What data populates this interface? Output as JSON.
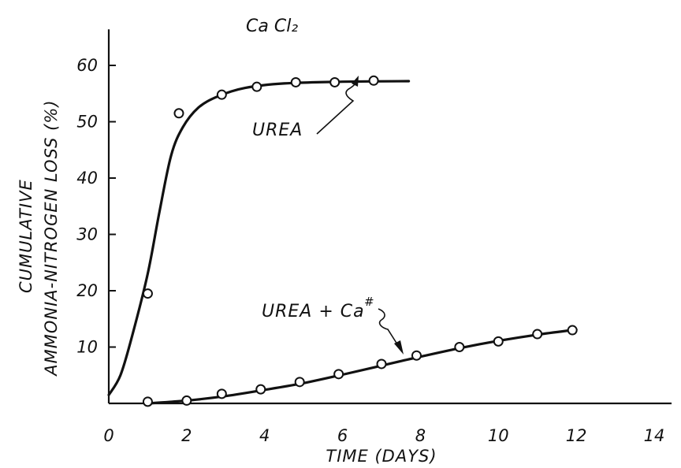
{
  "chart_data": {
    "type": "line",
    "title": "Ca Cl₂",
    "xlabel": "TIME (DAYS)",
    "ylabel_line1": "CUMULATIVE",
    "ylabel_line2": "AMMONIA-NITROGEN LOSS (%)",
    "xlim": [
      0,
      14
    ],
    "ylim": [
      0,
      65
    ],
    "x_ticks": [
      0,
      2,
      4,
      6,
      8,
      10,
      12,
      14
    ],
    "y_ticks": [
      10,
      20,
      30,
      40,
      50,
      60
    ],
    "grid": false,
    "series": [
      {
        "name": "UREA",
        "points": [
          {
            "x": 1.0,
            "y": 19.5
          },
          {
            "x": 1.8,
            "y": 51.5
          },
          {
            "x": 2.9,
            "y": 54.8
          },
          {
            "x": 3.8,
            "y": 56.2
          },
          {
            "x": 4.8,
            "y": 57.0
          },
          {
            "x": 5.8,
            "y": 57.0
          },
          {
            "x": 6.8,
            "y": 57.3
          }
        ],
        "curve": [
          {
            "x": 0.0,
            "y": 1.5
          },
          {
            "x": 0.3,
            "y": 5.0
          },
          {
            "x": 0.6,
            "y": 12.0
          },
          {
            "x": 1.0,
            "y": 23.0
          },
          {
            "x": 1.3,
            "y": 34.0
          },
          {
            "x": 1.6,
            "y": 44.0
          },
          {
            "x": 1.9,
            "y": 49.0
          },
          {
            "x": 2.3,
            "y": 52.5
          },
          {
            "x": 2.8,
            "y": 54.5
          },
          {
            "x": 3.5,
            "y": 56.0
          },
          {
            "x": 4.5,
            "y": 56.8
          },
          {
            "x": 6.0,
            "y": 57.1
          },
          {
            "x": 7.7,
            "y": 57.2
          }
        ]
      },
      {
        "name": "UREA + Ca#",
        "points": [
          {
            "x": 1.0,
            "y": 0.3
          },
          {
            "x": 2.0,
            "y": 0.5
          },
          {
            "x": 2.9,
            "y": 1.7
          },
          {
            "x": 3.9,
            "y": 2.5
          },
          {
            "x": 4.9,
            "y": 3.8
          },
          {
            "x": 5.9,
            "y": 5.2
          },
          {
            "x": 7.0,
            "y": 7.0
          },
          {
            "x": 7.9,
            "y": 8.5
          },
          {
            "x": 9.0,
            "y": 10.0
          },
          {
            "x": 10.0,
            "y": 11.0
          },
          {
            "x": 11.0,
            "y": 12.3
          },
          {
            "x": 11.9,
            "y": 13.0
          }
        ],
        "curve": [
          {
            "x": 1.0,
            "y": 0.0
          },
          {
            "x": 2.0,
            "y": 0.5
          },
          {
            "x": 3.0,
            "y": 1.3
          },
          {
            "x": 4.0,
            "y": 2.4
          },
          {
            "x": 5.0,
            "y": 3.6
          },
          {
            "x": 6.0,
            "y": 5.1
          },
          {
            "x": 7.0,
            "y": 6.7
          },
          {
            "x": 8.0,
            "y": 8.3
          },
          {
            "x": 9.0,
            "y": 9.8
          },
          {
            "x": 10.0,
            "y": 11.1
          },
          {
            "x": 11.0,
            "y": 12.2
          },
          {
            "x": 12.0,
            "y": 13.1
          }
        ]
      }
    ],
    "annotations": {
      "urea_label": "UREA",
      "urea_ca_label_base": "UREA + Ca",
      "urea_ca_label_sup": "#"
    }
  }
}
